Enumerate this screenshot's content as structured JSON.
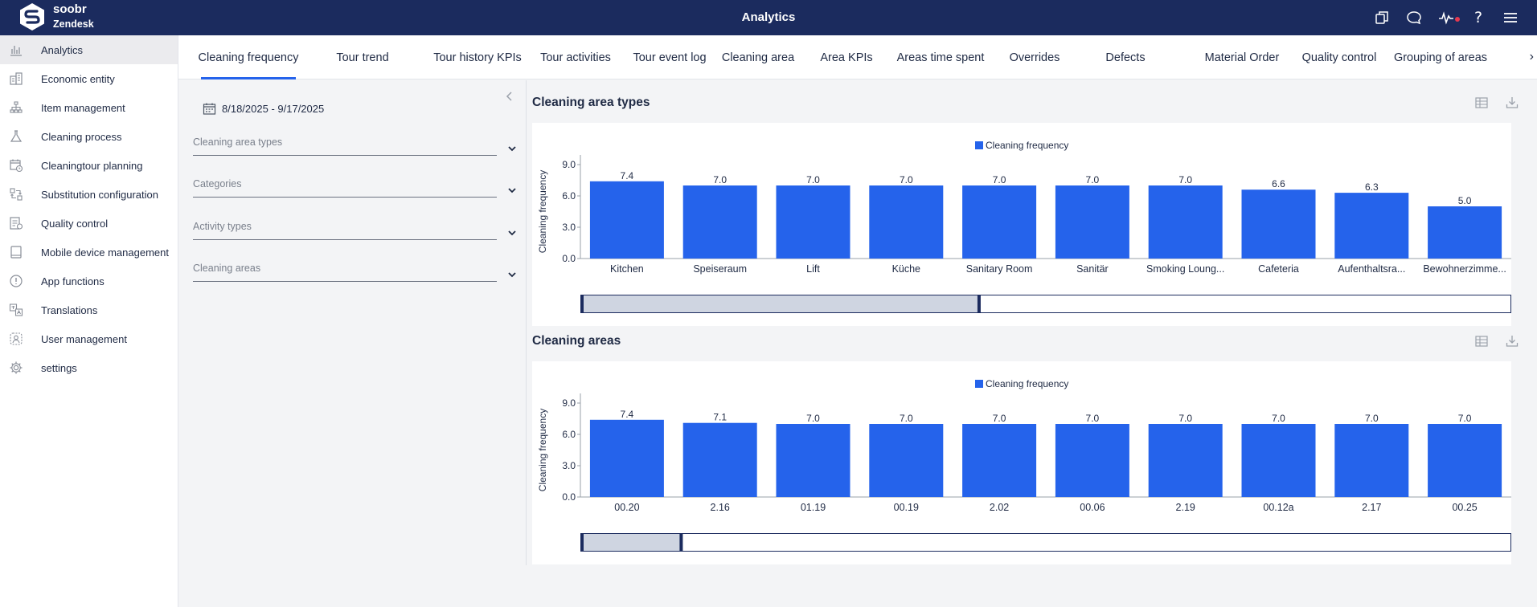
{
  "app": {
    "brand_name": "soobr",
    "brand_sub": "Zendesk",
    "title": "Analytics",
    "top_icons": [
      "copy-icon",
      "chat-icon",
      "activity-icon",
      "help-icon",
      "menu-icon"
    ]
  },
  "sidebar": {
    "items": [
      {
        "label": "Analytics",
        "icon": "bar-chart-icon",
        "active": true
      },
      {
        "label": "Economic entity",
        "icon": "building-icon"
      },
      {
        "label": "Item management",
        "icon": "hierarchy-icon"
      },
      {
        "label": "Cleaning process",
        "icon": "flask-icon"
      },
      {
        "label": "Cleaningtour planning",
        "icon": "calendar-clock-icon"
      },
      {
        "label": "Substitution configuration",
        "icon": "swap-icon"
      },
      {
        "label": "Quality control",
        "icon": "checklist-icon"
      },
      {
        "label": "Mobile device management",
        "icon": "tablet-icon"
      },
      {
        "label": "App functions",
        "icon": "info-circle-icon"
      },
      {
        "label": "Translations",
        "icon": "translate-icon"
      },
      {
        "label": "User management",
        "icon": "users-icon"
      },
      {
        "label": "settings",
        "icon": "gear-icon"
      }
    ]
  },
  "tabs": [
    {
      "label": "Cleaning frequency",
      "active": true
    },
    {
      "label": "Tour trend"
    },
    {
      "label": "Tour history KPIs"
    },
    {
      "label": "Tour activities"
    },
    {
      "label": "Tour event log"
    },
    {
      "label": "Cleaning area"
    },
    {
      "label": "Area KPIs"
    },
    {
      "label": "Areas time spent"
    },
    {
      "label": "Overrides"
    },
    {
      "label": "Defects"
    },
    {
      "label": "Material Order"
    },
    {
      "label": "Quality control"
    },
    {
      "label": "Grouping of areas"
    }
  ],
  "filters": {
    "date_range": "8/18/2025 - 9/17/2025",
    "dropdowns": [
      {
        "label": "Cleaning area types"
      },
      {
        "label": "Categories"
      },
      {
        "label": "Activity types"
      },
      {
        "label": "Cleaning areas"
      }
    ]
  },
  "panels": [
    {
      "title": "Cleaning area types",
      "scroll_window": [
        0.0,
        0.43
      ]
    },
    {
      "title": "Cleaning areas",
      "scroll_window": [
        0.0,
        0.11
      ]
    }
  ],
  "colors": {
    "bar": "#2563eb",
    "topbar": "#1b2b5e",
    "accent": "#2563eb",
    "scroll_thumb": "#cfd5e1"
  },
  "chart_data": [
    {
      "type": "bar",
      "title": "Cleaning area types",
      "ylabel": "Cleaning frequency",
      "ylim": [
        0,
        9
      ],
      "yticks": [
        "0.0",
        "3.0",
        "6.0",
        "9.0"
      ],
      "legend": "top",
      "series": [
        {
          "name": "Cleaning frequency",
          "values": [
            7.4,
            7.0,
            7.0,
            7.0,
            7.0,
            7.0,
            7.0,
            6.6,
            6.3,
            5.0
          ]
        }
      ],
      "categories": [
        "Kitchen",
        "Speiseraum",
        "Lift",
        "Küche",
        "Sanitary Room",
        "Sanitär",
        "Smoking Loung...",
        "Cafeteria",
        "Aufenthaltsra...",
        "Bewohnerzimme..."
      ],
      "data_labels": [
        "7.4",
        "7.0",
        "7.0",
        "7.0",
        "7.0",
        "7.0",
        "7.0",
        "6.6",
        "6.3",
        "5.0"
      ]
    },
    {
      "type": "bar",
      "title": "Cleaning areas",
      "ylabel": "Cleaning frequency",
      "ylim": [
        0,
        9
      ],
      "yticks": [
        "0.0",
        "3.0",
        "6.0",
        "9.0"
      ],
      "legend": "top",
      "series": [
        {
          "name": "Cleaning frequency",
          "values": [
            7.4,
            7.1,
            7.0,
            7.0,
            7.0,
            7.0,
            7.0,
            7.0,
            7.0,
            7.0
          ]
        }
      ],
      "categories": [
        "00.20",
        "2.16",
        "01.19",
        "00.19",
        "2.02",
        "00.06",
        "2.19",
        "00.12a",
        "2.17",
        "00.25"
      ],
      "data_labels": [
        "7.4",
        "7.1",
        "7.0",
        "7.0",
        "7.0",
        "7.0",
        "7.0",
        "7.0",
        "7.0",
        "7.0"
      ]
    }
  ]
}
